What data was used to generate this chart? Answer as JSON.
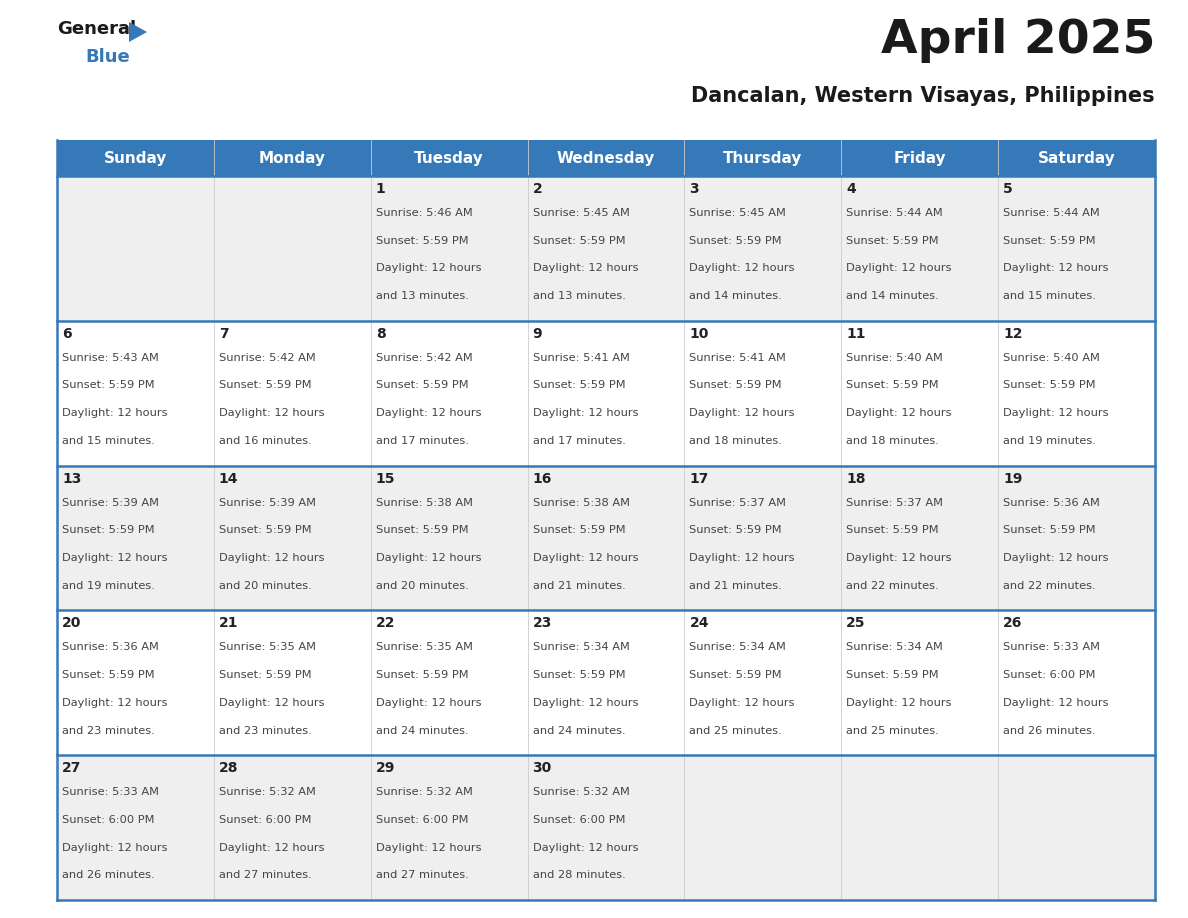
{
  "title": "April 2025",
  "subtitle": "Dancalan, Western Visayas, Philippines",
  "header_bg": "#3579b8",
  "header_text_color": "#ffffff",
  "cell_bg_odd": "#efefef",
  "cell_bg_even": "#ffffff",
  "day_number_color": "#222222",
  "cell_text_color": "#444444",
  "border_color": "#3579b8",
  "grid_line_color": "#cccccc",
  "days_of_week": [
    "Sunday",
    "Monday",
    "Tuesday",
    "Wednesday",
    "Thursday",
    "Friday",
    "Saturday"
  ],
  "weeks": [
    [
      {
        "day": "",
        "sunrise": "",
        "sunset": "",
        "daylight_min": ""
      },
      {
        "day": "",
        "sunrise": "",
        "sunset": "",
        "daylight_min": ""
      },
      {
        "day": "1",
        "sunrise": "5:46 AM",
        "sunset": "5:59 PM",
        "daylight_min": "13 minutes."
      },
      {
        "day": "2",
        "sunrise": "5:45 AM",
        "sunset": "5:59 PM",
        "daylight_min": "13 minutes."
      },
      {
        "day": "3",
        "sunrise": "5:45 AM",
        "sunset": "5:59 PM",
        "daylight_min": "14 minutes."
      },
      {
        "day": "4",
        "sunrise": "5:44 AM",
        "sunset": "5:59 PM",
        "daylight_min": "14 minutes."
      },
      {
        "day": "5",
        "sunrise": "5:44 AM",
        "sunset": "5:59 PM",
        "daylight_min": "15 minutes."
      }
    ],
    [
      {
        "day": "6",
        "sunrise": "5:43 AM",
        "sunset": "5:59 PM",
        "daylight_min": "15 minutes."
      },
      {
        "day": "7",
        "sunrise": "5:42 AM",
        "sunset": "5:59 PM",
        "daylight_min": "16 minutes."
      },
      {
        "day": "8",
        "sunrise": "5:42 AM",
        "sunset": "5:59 PM",
        "daylight_min": "17 minutes."
      },
      {
        "day": "9",
        "sunrise": "5:41 AM",
        "sunset": "5:59 PM",
        "daylight_min": "17 minutes."
      },
      {
        "day": "10",
        "sunrise": "5:41 AM",
        "sunset": "5:59 PM",
        "daylight_min": "18 minutes."
      },
      {
        "day": "11",
        "sunrise": "5:40 AM",
        "sunset": "5:59 PM",
        "daylight_min": "18 minutes."
      },
      {
        "day": "12",
        "sunrise": "5:40 AM",
        "sunset": "5:59 PM",
        "daylight_min": "19 minutes."
      }
    ],
    [
      {
        "day": "13",
        "sunrise": "5:39 AM",
        "sunset": "5:59 PM",
        "daylight_min": "19 minutes."
      },
      {
        "day": "14",
        "sunrise": "5:39 AM",
        "sunset": "5:59 PM",
        "daylight_min": "20 minutes."
      },
      {
        "day": "15",
        "sunrise": "5:38 AM",
        "sunset": "5:59 PM",
        "daylight_min": "20 minutes."
      },
      {
        "day": "16",
        "sunrise": "5:38 AM",
        "sunset": "5:59 PM",
        "daylight_min": "21 minutes."
      },
      {
        "day": "17",
        "sunrise": "5:37 AM",
        "sunset": "5:59 PM",
        "daylight_min": "21 minutes."
      },
      {
        "day": "18",
        "sunrise": "5:37 AM",
        "sunset": "5:59 PM",
        "daylight_min": "22 minutes."
      },
      {
        "day": "19",
        "sunrise": "5:36 AM",
        "sunset": "5:59 PM",
        "daylight_min": "22 minutes."
      }
    ],
    [
      {
        "day": "20",
        "sunrise": "5:36 AM",
        "sunset": "5:59 PM",
        "daylight_min": "23 minutes."
      },
      {
        "day": "21",
        "sunrise": "5:35 AM",
        "sunset": "5:59 PM",
        "daylight_min": "23 minutes."
      },
      {
        "day": "22",
        "sunrise": "5:35 AM",
        "sunset": "5:59 PM",
        "daylight_min": "24 minutes."
      },
      {
        "day": "23",
        "sunrise": "5:34 AM",
        "sunset": "5:59 PM",
        "daylight_min": "24 minutes."
      },
      {
        "day": "24",
        "sunrise": "5:34 AM",
        "sunset": "5:59 PM",
        "daylight_min": "25 minutes."
      },
      {
        "day": "25",
        "sunrise": "5:34 AM",
        "sunset": "5:59 PM",
        "daylight_min": "25 minutes."
      },
      {
        "day": "26",
        "sunrise": "5:33 AM",
        "sunset": "6:00 PM",
        "daylight_min": "26 minutes."
      }
    ],
    [
      {
        "day": "27",
        "sunrise": "5:33 AM",
        "sunset": "6:00 PM",
        "daylight_min": "26 minutes."
      },
      {
        "day": "28",
        "sunrise": "5:32 AM",
        "sunset": "6:00 PM",
        "daylight_min": "27 minutes."
      },
      {
        "day": "29",
        "sunrise": "5:32 AM",
        "sunset": "6:00 PM",
        "daylight_min": "27 minutes."
      },
      {
        "day": "30",
        "sunrise": "5:32 AM",
        "sunset": "6:00 PM",
        "daylight_min": "28 minutes."
      },
      {
        "day": "",
        "sunrise": "",
        "sunset": "",
        "daylight_min": ""
      },
      {
        "day": "",
        "sunrise": "",
        "sunset": "",
        "daylight_min": ""
      },
      {
        "day": "",
        "sunrise": "",
        "sunset": "",
        "daylight_min": ""
      }
    ]
  ],
  "logo_text_general": "General",
  "logo_text_blue": "Blue",
  "logo_color_general": "#1a1a1a",
  "logo_color_blue": "#3579b8",
  "logo_triangle_color": "#3579b8",
  "title_fontsize": 34,
  "subtitle_fontsize": 15,
  "header_fontsize": 11,
  "day_num_fontsize": 10,
  "cell_fontsize": 8.2
}
